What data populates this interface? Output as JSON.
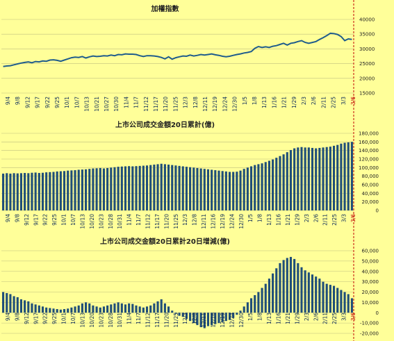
{
  "colors": {
    "background": "#ffff99",
    "grid": "#bfbf7f",
    "line": "#1f5c8c",
    "bar": "#1f4e79",
    "marker": "#c00000"
  },
  "chart_data": [
    {
      "type": "line",
      "title": "加權指數",
      "ylim": [
        15000,
        40000
      ],
      "yticks": [
        15000,
        20000,
        25000,
        30000,
        35000,
        40000
      ],
      "tick_labels": [
        "9/4",
        "9/8",
        "9/12",
        "9/17",
        "9/22",
        "9/25",
        "10/1",
        "10/7",
        "10/13",
        "10/21",
        "10/27",
        "10/30",
        "11/4",
        "11/7",
        "11/12",
        "11/17",
        "11/20",
        "11/25",
        "12/3",
        "12/8",
        "12/11",
        "12/19",
        "12/24",
        "12/30",
        "1/5",
        "1/8",
        "1/13",
        "1/16",
        "1/21",
        "1/29",
        "2/3",
        "2/6",
        "2/11",
        "2/25",
        "3/3",
        "3/6"
      ],
      "values": [
        24000,
        24200,
        24300,
        24600,
        24900,
        25200,
        25400,
        25600,
        25300,
        25700,
        25600,
        25900,
        25800,
        26200,
        26300,
        26100,
        25800,
        26200,
        26600,
        27000,
        27200,
        27100,
        27400,
        26900,
        27300,
        27600,
        27400,
        27500,
        27700,
        27600,
        27900,
        27700,
        28100,
        28000,
        28300,
        28200,
        28200,
        28100,
        27700,
        27400,
        27700,
        27700,
        27600,
        27400,
        27100,
        26600,
        27300,
        26500,
        27000,
        27300,
        27600,
        27500,
        27900,
        27600,
        27800,
        28100,
        27900,
        28100,
        28300,
        28000,
        27800,
        27500,
        27300,
        27500,
        27800,
        28100,
        28300,
        28600,
        28800,
        29100,
        30200,
        30800,
        30500,
        30700,
        30500,
        30900,
        31100,
        31500,
        31900,
        31300,
        31900,
        32100,
        32500,
        32800,
        32200,
        31900,
        32200,
        32500,
        33200,
        33800,
        34500,
        35300,
        35200,
        34900,
        34200,
        32800,
        33400,
        33200
      ]
    },
    {
      "type": "bar",
      "title": "上市公司成交金額20日累計(億)",
      "ylim": [
        0,
        180000
      ],
      "yticks": [
        0,
        20000,
        40000,
        60000,
        80000,
        100000,
        120000,
        140000,
        160000,
        180000
      ],
      "ytick_labels": [
        "0",
        "20,000",
        "40,000",
        "60,000",
        "80,000",
        "100,000",
        "120,000",
        "140,000",
        "160,000",
        "180,000"
      ],
      "tick_labels": [
        "9/4",
        "9/8",
        "9/12",
        "9/17",
        "9/22",
        "9/25",
        "10/1",
        "10/7",
        "10/13",
        "10/20",
        "10/23",
        "10/28",
        "10/31",
        "11/4",
        "11/7",
        "11/12",
        "11/17",
        "11/20",
        "11/25",
        "12/3",
        "12/8",
        "12/11",
        "12/16",
        "12/19",
        "12/24",
        "12/30",
        "1/5",
        "1/8",
        "1/13",
        "1/16",
        "1/21",
        "1/29",
        "2/3",
        "2/6",
        "2/11",
        "2/25",
        "3/3",
        "3/6"
      ],
      "values": [
        86000,
        87000,
        86000,
        87000,
        86500,
        87000,
        87500,
        87000,
        88000,
        88500,
        87500,
        88000,
        89000,
        89500,
        90000,
        91000,
        91500,
        92000,
        93000,
        93500,
        94000,
        95000,
        95500,
        96000,
        97000,
        98000,
        98500,
        99000,
        98000,
        99000,
        100000,
        101000,
        102000,
        102500,
        103000,
        103500,
        103000,
        103500,
        104000,
        104500,
        105000,
        106000,
        107000,
        108000,
        109000,
        108000,
        107000,
        106000,
        105000,
        104000,
        103000,
        102000,
        101000,
        100000,
        99000,
        98000,
        97000,
        96000,
        95000,
        94000,
        93000,
        92000,
        91000,
        90000,
        90000,
        90500,
        93000,
        97000,
        100000,
        103000,
        106000,
        108000,
        110000,
        113000,
        116000,
        119000,
        123000,
        127000,
        131000,
        136000,
        141000,
        145000,
        147000,
        148000,
        147000,
        147000,
        146000,
        145000,
        146000,
        147000,
        148000,
        149000,
        151000,
        153000,
        156000,
        158000,
        159000,
        160000
      ]
    },
    {
      "type": "bar",
      "title": "上市公司成交金額20日累計20日增減(億)",
      "ylim": [
        -20000,
        60000
      ],
      "yticks": [
        -20000,
        -10000,
        0,
        10000,
        20000,
        30000,
        40000,
        50000,
        60000
      ],
      "ytick_labels": [
        "-20,000",
        "-10,000",
        "0",
        "10,000",
        "20,000",
        "30,000",
        "40,000",
        "50,000",
        "60,000"
      ],
      "tick_labels": [
        "9/4",
        "9/8",
        "9/12",
        "9/17",
        "9/22",
        "9/25",
        "10/1",
        "10/7",
        "10/13",
        "10/20",
        "10/23",
        "10/28",
        "10/31",
        "11/4",
        "11/7",
        "11/12",
        "11/17",
        "11/20",
        "11/25",
        "12/3",
        "12/8",
        "12/11",
        "12/16",
        "12/19",
        "12/24",
        "12/30",
        "1/5",
        "1/8",
        "1/13",
        "1/16",
        "1/21",
        "1/29",
        "2/3",
        "2/6",
        "2/11",
        "2/25",
        "3/3",
        "3/6"
      ],
      "values": [
        20000,
        19000,
        18000,
        16000,
        15000,
        13000,
        12000,
        11000,
        9000,
        8000,
        7000,
        6000,
        5000,
        4500,
        4000,
        3500,
        3000,
        3500,
        4000,
        5000,
        6000,
        7000,
        9000,
        10000,
        9000,
        7000,
        6000,
        5000,
        6000,
        7000,
        8000,
        9000,
        10000,
        9000,
        8000,
        9000,
        8500,
        7000,
        6000,
        5000,
        6000,
        7000,
        9000,
        11000,
        13000,
        9000,
        6000,
        2000,
        -1000,
        -3000,
        -4000,
        -6000,
        -8000,
        -10000,
        -12000,
        -14000,
        -15000,
        -13000,
        -12000,
        -11000,
        -10000,
        -9000,
        -8000,
        -7000,
        -5000,
        -2000,
        2000,
        6000,
        10000,
        14000,
        17000,
        20000,
        24000,
        28000,
        33000,
        38000,
        43000,
        48000,
        51000,
        53000,
        54000,
        52000,
        48000,
        44000,
        41000,
        39000,
        37000,
        35000,
        33000,
        30000,
        28000,
        27000,
        26000,
        24000,
        22000,
        20000,
        18000,
        14000
      ]
    }
  ]
}
